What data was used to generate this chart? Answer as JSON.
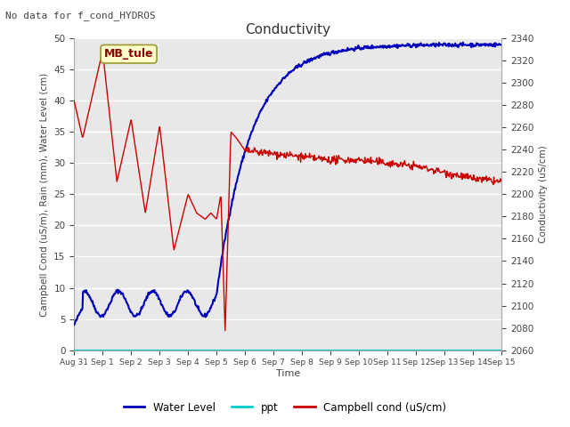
{
  "title": "Conductivity",
  "top_left_text": "No data for f_cond_HYDROS",
  "annotation_text": "MB_tule",
  "xlabel": "Time",
  "ylabel_left": "Campbell Cond (uS/m), Rain (mm), Water Level (cm)",
  "ylabel_right": "Conductivity (uS/cm)",
  "ylim_left": [
    0,
    50
  ],
  "ylim_right": [
    2060,
    2340
  ],
  "x_tick_labels": [
    "Aug 31",
    "Sep 1",
    "Sep 2",
    "Sep 3",
    "Sep 4",
    "Sep 5",
    "Sep 6",
    "Sep 7",
    "Sep 8",
    "Sep 9",
    "Sep 10",
    "Sep 11",
    "Sep 12",
    "Sep 13",
    "Sep 14",
    "Sep 15"
  ],
  "background_color": "#e8e8e8",
  "grid_color": "#ffffff",
  "water_level_color": "#0000bb",
  "ppt_color": "#00cccc",
  "campbell_color": "#cc0000",
  "legend_entries": [
    "Water Level",
    "ppt",
    "Campbell cond (uS/cm)"
  ],
  "fig_width": 6.4,
  "fig_height": 4.8,
  "dpi": 100
}
